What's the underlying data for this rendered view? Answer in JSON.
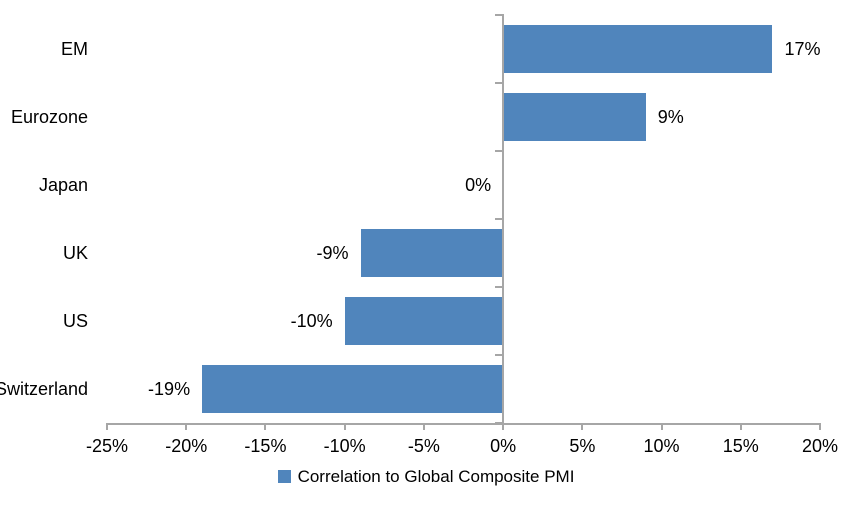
{
  "colors": {
    "bar": "#5085BC",
    "axis": "#A6A6A6",
    "text": "#000000",
    "background": "#FFFFFF"
  },
  "chart_data": {
    "type": "bar",
    "orientation": "horizontal",
    "title": "",
    "categories": [
      "EM",
      "Eurozone",
      "Japan",
      "UK",
      "US",
      "Switzerland"
    ],
    "values": [
      17,
      9,
      0,
      -9,
      -10,
      -19
    ],
    "data_labels": [
      "17%",
      "9%",
      "0%",
      "-9%",
      "-10%",
      "-19%"
    ],
    "xlim": [
      -25,
      20
    ],
    "x_tick_step": 5,
    "x_tick_labels": [
      "-25%",
      "-20%",
      "-15%",
      "-10%",
      "-5%",
      "0%",
      "5%",
      "10%",
      "15%",
      "20%"
    ],
    "grid": false,
    "legend_position": "bottom",
    "legend_label": "Correlation to Global Composite PMI"
  }
}
